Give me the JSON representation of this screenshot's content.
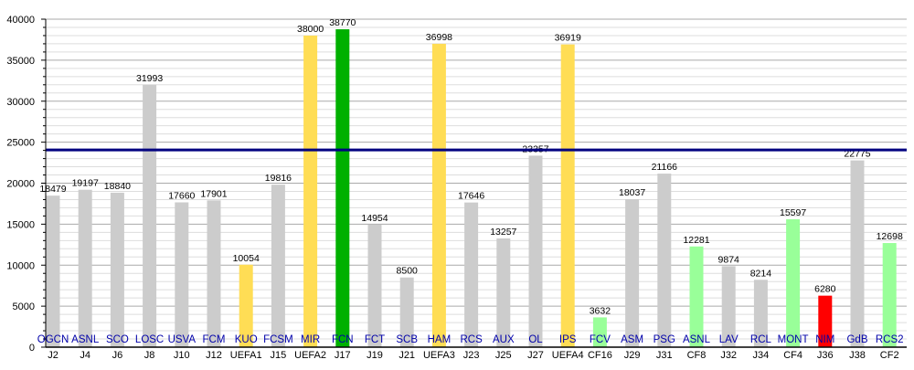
{
  "chart_data": {
    "type": "bar",
    "title": "",
    "xlabel": "",
    "ylabel": "",
    "ylim": [
      0,
      40000
    ],
    "yticks": [
      0,
      5000,
      10000,
      15000,
      20000,
      25000,
      30000,
      35000,
      40000
    ],
    "grid": true,
    "average_line": 24050,
    "colors": {
      "league": "#cccccc",
      "uefa": "#ffdd55",
      "top": "#00b000",
      "cup": "#99ff99",
      "low": "#ff0000",
      "average": "#000080",
      "team_label": "#0000aa"
    },
    "categories": [
      "J2",
      "J4",
      "J6",
      "J8",
      "J10",
      "J12",
      "UEFA1",
      "J15",
      "UEFA2",
      "J17",
      "J19",
      "J21",
      "UEFA3",
      "J23",
      "J25",
      "J27",
      "UEFA4",
      "CF16",
      "J29",
      "J31",
      "CF8",
      "J32",
      "J34",
      "CF4",
      "J36",
      "J38",
      "CF2"
    ],
    "teams": [
      "OGCN",
      "ASNL",
      "SCO",
      "LOSC",
      "USVA",
      "FCM",
      "KUO",
      "FCSM",
      "MIR",
      "FCN",
      "FCT",
      "SCB",
      "HAM",
      "RCS",
      "AUX",
      "OL",
      "IPS",
      "FCV",
      "ASM",
      "PSG",
      "ASNL",
      "LAV",
      "RCL",
      "MONT",
      "NIM",
      "GdB",
      "RCS2"
    ],
    "values": [
      18479,
      19197,
      18840,
      31993,
      17660,
      17901,
      10054,
      19816,
      38000,
      38770,
      14954,
      8500,
      36998,
      17646,
      13257,
      23357,
      36919,
      3632,
      18037,
      21166,
      12281,
      9874,
      8214,
      15597,
      6280,
      22775,
      12698
    ],
    "kinds": [
      "league",
      "league",
      "league",
      "league",
      "league",
      "league",
      "uefa",
      "league",
      "uefa",
      "top",
      "league",
      "league",
      "uefa",
      "league",
      "league",
      "league",
      "uefa",
      "cup",
      "league",
      "league",
      "cup",
      "league",
      "league",
      "cup",
      "low",
      "league",
      "cup"
    ]
  }
}
